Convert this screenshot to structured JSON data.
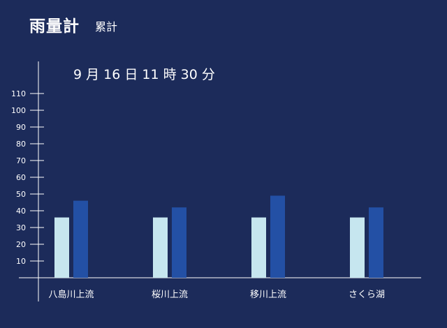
{
  "header": {
    "title": "雨量計",
    "subtitle": "累計"
  },
  "timestamp": "9 月 16 日 11 時 30 分",
  "colors": {
    "background": "#1c2b5a",
    "series_light": "#c6e6ef",
    "series_dark": "#2350a5",
    "axis": "#ffffff"
  },
  "chart_data": {
    "type": "bar",
    "categories": [
      "八島川上流",
      "桜川上流",
      "移川上流",
      "さくら湖"
    ],
    "series": [
      {
        "values": [
          36,
          36,
          36,
          36
        ]
      },
      {
        "values": [
          46,
          42,
          49,
          42
        ]
      }
    ],
    "yticks": [
      10,
      20,
      30,
      40,
      50,
      60,
      70,
      80,
      90,
      100,
      110
    ],
    "ylim": [
      0,
      110
    ],
    "grid": false
  }
}
